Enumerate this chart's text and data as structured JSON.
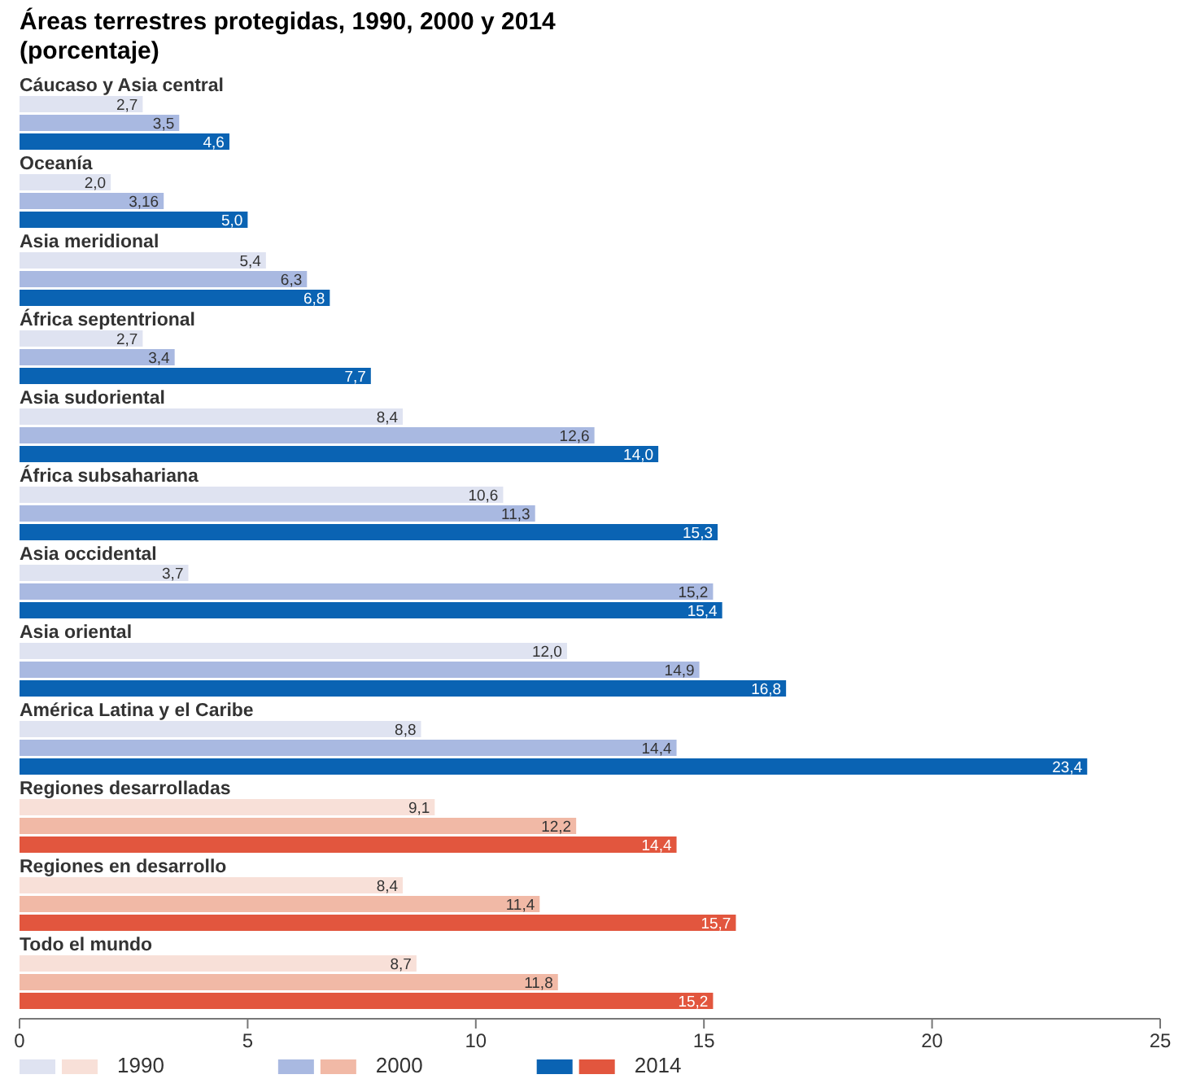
{
  "chart_data": {
    "type": "bar",
    "orientation": "horizontal",
    "title": "Áreas terrestres protegidas, 1990, 2000 y 2014",
    "subtitle": "(porcentaje)",
    "categories": [
      "Cáucaso y Asia central",
      "Oceanía",
      "Asia meridional",
      "África septentrional",
      "Asia sudoriental",
      "África subsahariana",
      "Asia occidental",
      "Asia oriental",
      "América Latina y el Caribe",
      "Regiones desarrolladas",
      "Regiones en desarrollo",
      "Todo el mundo"
    ],
    "series": [
      {
        "name": "1990",
        "colors": [
          "#dfe3f1",
          "#dfe3f1",
          "#dfe3f1",
          "#dfe3f1",
          "#dfe3f1",
          "#dfe3f1",
          "#dfe3f1",
          "#dfe3f1",
          "#dfe3f1",
          "#f8e0d8",
          "#f8e0d8",
          "#f8e0d8"
        ],
        "values": [
          2.7,
          2.0,
          5.4,
          2.7,
          8.4,
          10.6,
          3.7,
          12.0,
          8.8,
          9.1,
          8.4,
          8.7
        ],
        "value_labels": [
          "2,7",
          "2,0",
          "5,4",
          "2,7",
          "8,4",
          "10,6",
          "3,7",
          "12,0",
          "8,8",
          "9,1",
          "8,4",
          "8,7"
        ]
      },
      {
        "name": "2000",
        "colors": [
          "#a9b9e1",
          "#a9b9e1",
          "#a9b9e1",
          "#a9b9e1",
          "#a9b9e1",
          "#a9b9e1",
          "#a9b9e1",
          "#a9b9e1",
          "#a9b9e1",
          "#f1b9a6",
          "#f1b9a6",
          "#f1b9a6"
        ],
        "values": [
          3.5,
          3.16,
          6.3,
          3.4,
          12.6,
          11.3,
          15.2,
          14.9,
          14.4,
          12.2,
          11.4,
          11.8
        ],
        "value_labels": [
          "3,5",
          "3,16",
          "6,3",
          "3,4",
          "12,6",
          "11,3",
          "15,2",
          "14,9",
          "14,4",
          "12,2",
          "11,4",
          "11,8"
        ]
      },
      {
        "name": "2014",
        "colors": [
          "#0a63b3",
          "#0a63b3",
          "#0a63b3",
          "#0a63b3",
          "#0a63b3",
          "#0a63b3",
          "#0a63b3",
          "#0a63b3",
          "#0a63b3",
          "#e2563e",
          "#e2563e",
          "#e2563e"
        ],
        "values": [
          4.6,
          5.0,
          6.8,
          7.7,
          14.0,
          15.3,
          15.4,
          16.8,
          23.4,
          14.4,
          15.7,
          15.2
        ],
        "value_labels": [
          "4,6",
          "5,0",
          "6,8",
          "7,7",
          "14,0",
          "15,3",
          "15,4",
          "16,8",
          "23,4",
          "14,4",
          "15,7",
          "15,2"
        ]
      }
    ],
    "xlim": [
      0,
      25
    ],
    "xticks": [
      0,
      5,
      10,
      15,
      20,
      25
    ],
    "grid": false,
    "legend": "bottom"
  }
}
